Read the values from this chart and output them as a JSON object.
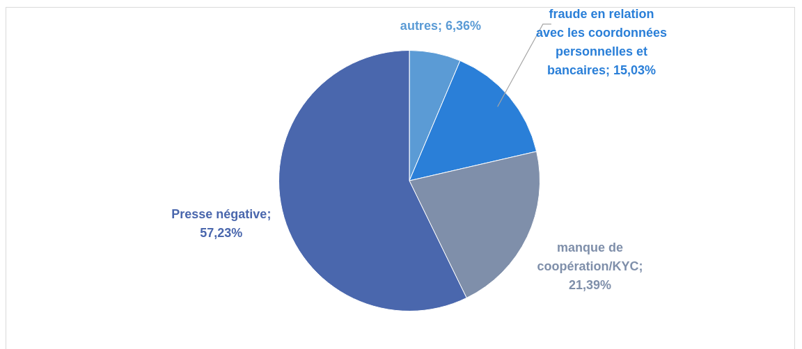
{
  "chart_data": {
    "type": "pie",
    "categories": [
      "autres",
      "fraude en relation avec les coordonnées personnelles et bancaires",
      "manque de coopération/KYC",
      "Presse négative"
    ],
    "value_labels": [
      "; 6,36%",
      "; 15,03%",
      "; 21,39%",
      "; 57,23%"
    ],
    "values": [
      6.36,
      15.03,
      21.39,
      57.23
    ],
    "colors": [
      "#5b9bd5",
      "#2a7fd8",
      "#7f8faa",
      "#4a67ad"
    ],
    "data_labels": true,
    "legend": false
  }
}
